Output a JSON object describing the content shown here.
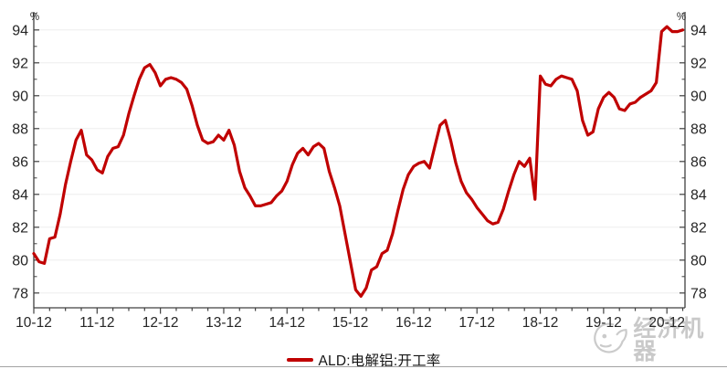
{
  "chart_data": {
    "type": "line",
    "title": "",
    "xlabel": "",
    "ylabel": "",
    "unit_label_left": "%",
    "unit_label_right": "%",
    "ylim": [
      77.1,
      95.1
    ],
    "y_major_ticks": [
      78,
      80,
      82,
      84,
      86,
      88,
      90,
      92,
      94
    ],
    "y_minor_ticks": [
      79,
      81,
      83,
      85,
      87,
      89,
      91,
      93,
      95
    ],
    "x_tick_labels": [
      "10-12",
      "11-12",
      "12-12",
      "13-12",
      "14-12",
      "15-12",
      "16-12",
      "17-12",
      "18-12",
      "19-12",
      "20-12"
    ],
    "x_minor_tick_every_months": 3,
    "grid": "horizontal-major",
    "legend_position": "bottom-center",
    "series": [
      {
        "name": "ALD:电解铝:开工率",
        "color": "#c00000",
        "freq": "monthly",
        "dates": [
          "2010-12",
          "2011-01",
          "2011-02",
          "2011-03",
          "2011-04",
          "2011-05",
          "2011-06",
          "2011-07",
          "2011-08",
          "2011-09",
          "2011-10",
          "2011-11",
          "2011-12",
          "2012-01",
          "2012-02",
          "2012-03",
          "2012-04",
          "2012-05",
          "2012-06",
          "2012-07",
          "2012-08",
          "2012-09",
          "2012-10",
          "2012-11",
          "2012-12",
          "2013-01",
          "2013-02",
          "2013-03",
          "2013-04",
          "2013-05",
          "2013-06",
          "2013-07",
          "2013-08",
          "2013-09",
          "2013-10",
          "2013-11",
          "2013-12",
          "2014-01",
          "2014-02",
          "2014-03",
          "2014-04",
          "2014-05",
          "2014-06",
          "2014-07",
          "2014-08",
          "2014-09",
          "2014-10",
          "2014-11",
          "2014-12",
          "2015-01",
          "2015-02",
          "2015-03",
          "2015-04",
          "2015-05",
          "2015-06",
          "2015-07",
          "2015-08",
          "2015-09",
          "2015-10",
          "2015-11",
          "2015-12",
          "2016-01",
          "2016-02",
          "2016-03",
          "2016-04",
          "2016-05",
          "2016-06",
          "2016-07",
          "2016-08",
          "2016-09",
          "2016-10",
          "2016-11",
          "2016-12",
          "2017-01",
          "2017-02",
          "2017-03",
          "2017-04",
          "2017-05",
          "2017-06",
          "2017-07",
          "2017-08",
          "2017-09",
          "2017-10",
          "2017-11",
          "2017-12",
          "2018-01",
          "2018-02",
          "2018-03",
          "2018-04",
          "2018-05",
          "2018-06",
          "2018-07",
          "2018-08",
          "2018-09",
          "2018-10",
          "2018-11",
          "2018-12",
          "2019-01",
          "2019-02",
          "2019-03",
          "2019-04",
          "2019-05",
          "2019-06",
          "2019-07",
          "2019-08",
          "2019-09",
          "2019-10",
          "2019-11",
          "2019-12",
          "2020-01",
          "2020-02",
          "2020-03",
          "2020-04",
          "2020-05",
          "2020-06",
          "2020-07",
          "2020-08",
          "2020-09",
          "2020-10",
          "2020-11",
          "2020-12",
          "2021-01",
          "2021-02",
          "2021-03"
        ],
        "values": [
          80.4,
          79.9,
          79.8,
          81.3,
          81.4,
          82.8,
          84.6,
          86.0,
          87.3,
          87.9,
          86.4,
          86.1,
          85.5,
          85.3,
          86.3,
          86.8,
          86.9,
          87.6,
          88.9,
          90.0,
          91.0,
          91.7,
          91.9,
          91.4,
          90.6,
          91.0,
          91.1,
          91.0,
          90.8,
          90.4,
          89.4,
          88.2,
          87.3,
          87.1,
          87.2,
          87.6,
          87.3,
          87.9,
          87.0,
          85.4,
          84.4,
          83.9,
          83.3,
          83.3,
          83.4,
          83.5,
          83.9,
          84.2,
          84.8,
          85.8,
          86.5,
          86.8,
          86.4,
          86.9,
          87.1,
          86.8,
          85.4,
          84.4,
          83.3,
          81.6,
          79.9,
          78.2,
          77.8,
          78.3,
          79.4,
          79.6,
          80.4,
          80.6,
          81.6,
          83.0,
          84.3,
          85.2,
          85.7,
          85.9,
          86.0,
          85.6,
          86.9,
          88.2,
          88.5,
          87.3,
          85.9,
          84.8,
          84.1,
          83.7,
          83.2,
          82.8,
          82.4,
          82.2,
          82.3,
          83.1,
          84.2,
          85.2,
          86.0,
          85.7,
          86.2,
          83.7,
          91.2,
          90.7,
          90.6,
          91.0,
          91.2,
          91.1,
          91.0,
          90.3,
          88.5,
          87.6,
          87.8,
          89.2,
          89.9,
          90.2,
          89.9,
          89.2,
          89.1,
          89.5,
          89.6,
          89.9,
          90.1,
          90.3,
          90.8,
          93.9,
          94.2,
          93.9,
          93.9,
          94.0
        ]
      }
    ]
  },
  "legend": {
    "label": "ALD:电解铝:开工率"
  },
  "watermark": {
    "text": "经济机器",
    "icon": "mascot-logo-icon"
  },
  "colors": {
    "line": "#c00000",
    "axis": "#404040",
    "tick_label": "#262626",
    "grid": "#ededed",
    "watermark": "#c9c9c9",
    "divider": "#a3a3a3"
  }
}
